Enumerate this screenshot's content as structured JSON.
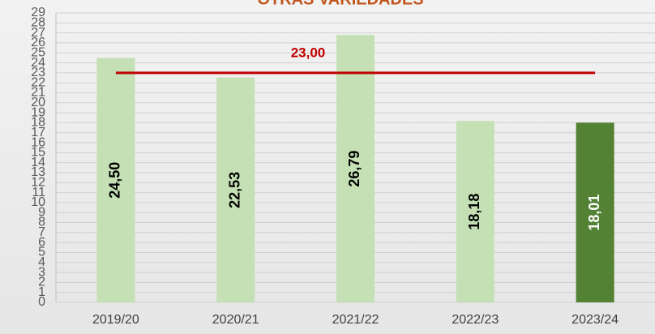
{
  "chart_data": {
    "type": "bar",
    "title": "OTRAS VARIEDADES",
    "categories": [
      "2019/20",
      "2020/21",
      "2021/22",
      "2022/23",
      "2023/24"
    ],
    "values": [
      24.5,
      22.53,
      26.79,
      18.18,
      18.01
    ],
    "value_labels": [
      "24,50",
      "22,53",
      "26,79",
      "18,18",
      "18,01"
    ],
    "colors": [
      "#c5e0b4",
      "#c5e0b4",
      "#c5e0b4",
      "#c5e0b4",
      "#548235"
    ],
    "reference_line": {
      "value": 23,
      "label": "23,00",
      "color": "#c00000"
    },
    "ylim": [
      0,
      29
    ],
    "yticks": [
      0,
      1,
      2,
      3,
      4,
      5,
      6,
      7,
      8,
      9,
      10,
      11,
      12,
      13,
      14,
      15,
      16,
      17,
      18,
      19,
      20,
      21,
      22,
      23,
      24,
      25,
      26,
      27,
      28,
      29
    ],
    "grid": true
  }
}
